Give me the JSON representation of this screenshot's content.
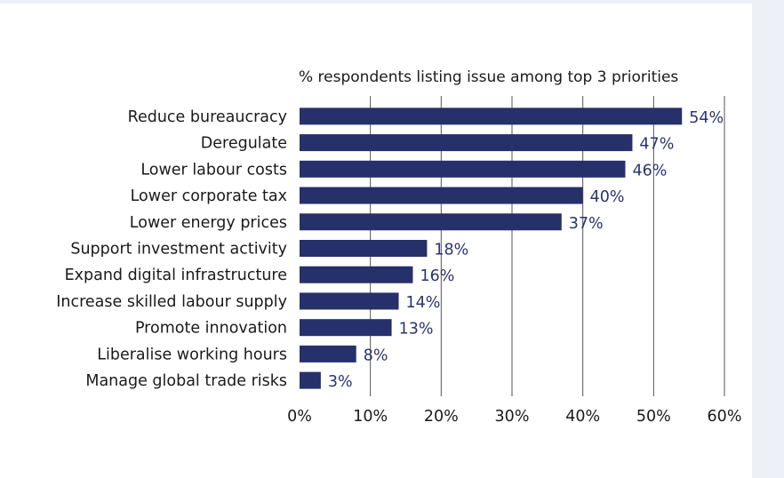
{
  "chart_data": {
    "type": "bar",
    "orientation": "horizontal",
    "title": "% respondents listing issue among top 3 priorities",
    "xlabel": "",
    "ylabel": "",
    "xlim": [
      0,
      60
    ],
    "categories": [
      "Reduce bureaucracy",
      "Deregulate",
      "Lower labour costs",
      "Lower corporate tax",
      "Lower energy prices",
      "Support investment activity",
      "Expand digital infrastructure",
      "Increase skilled labour supply",
      "Promote innovation",
      "Liberalise working hours",
      "Manage global trade risks"
    ],
    "values": [
      54,
      47,
      46,
      40,
      37,
      18,
      16,
      14,
      13,
      8,
      3
    ],
    "value_labels": [
      "54%",
      "47%",
      "46%",
      "40%",
      "37%",
      "18%",
      "16%",
      "14%",
      "13%",
      "8%",
      "3%"
    ],
    "ticks": [
      0,
      10,
      20,
      30,
      40,
      50,
      60
    ],
    "tick_labels": [
      "0%",
      "10%",
      "20%",
      "30%",
      "40%",
      "50%",
      "60%"
    ],
    "grid": "vertical",
    "colors": {
      "bar": "#26306a",
      "value_label": "#2a3470",
      "grid": "#555555"
    }
  }
}
